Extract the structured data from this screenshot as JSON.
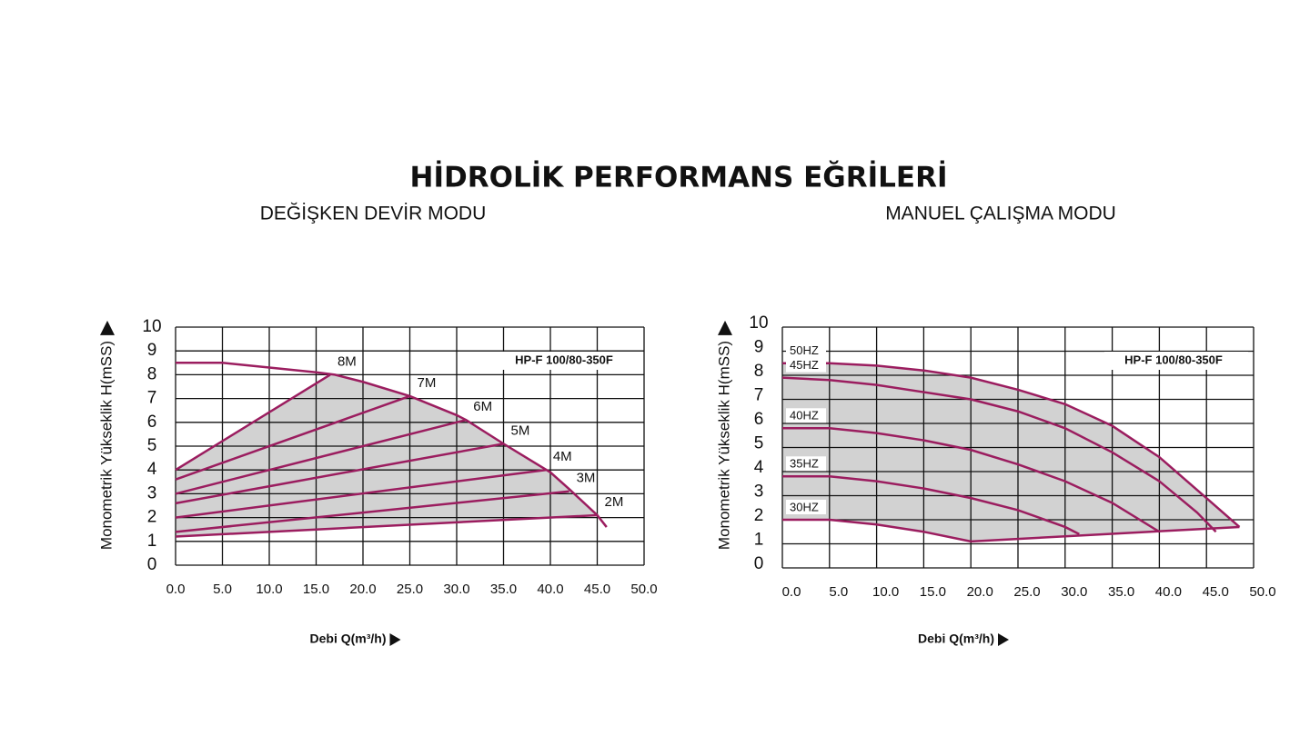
{
  "title": "HİDROLİK PERFORMANS EĞRİLERİ",
  "chart_data": [
    {
      "type": "line",
      "title": "DEĞİŞKEN DEVİR MODU",
      "annotation": "HP-F 100/80-350F",
      "y_label": "Monometrik Yükseklik H(mSS)",
      "x_label": "Debi Q(m³/h)",
      "color": "#9b1d5f",
      "fill": "#d2d2d2",
      "grid": true,
      "xlim": [
        0,
        50
      ],
      "xticks": [
        {
          "value": 0,
          "label": "0.0"
        },
        {
          "value": 5,
          "label": "5.0"
        },
        {
          "value": 10,
          "label": "10.0"
        },
        {
          "value": 15,
          "label": "15.0"
        },
        {
          "value": 20,
          "label": "20.0"
        },
        {
          "value": 25,
          "label": "25.0"
        },
        {
          "value": 30,
          "label": "30.0"
        },
        {
          "value": 35,
          "label": "35.0"
        },
        {
          "value": 40,
          "label": "40.0"
        },
        {
          "value": 45,
          "label": "45.0"
        },
        {
          "value": 50,
          "label": "50.0"
        }
      ],
      "ylim": [
        0,
        10
      ],
      "yticks": [
        0,
        1,
        2,
        3,
        4,
        5,
        6,
        7,
        8,
        9,
        10
      ],
      "series": [
        {
          "x": [
            0,
            5,
            10,
            15,
            17,
            20,
            25,
            30,
            31,
            35,
            40,
            42,
            45,
            46
          ],
          "values": [
            8.5,
            8.5,
            8.3,
            8.1,
            8.0,
            7.7,
            7.1,
            6.3,
            6.1,
            5.1,
            3.9,
            3.2,
            2.1,
            1.6
          ]
        },
        {
          "name": "8M",
          "x": [
            0,
            16.5
          ],
          "values": [
            4.0,
            8.0
          ]
        },
        {
          "name": "7M",
          "x": [
            0,
            25
          ],
          "values": [
            3.6,
            7.1
          ]
        },
        {
          "name": "6M",
          "x": [
            0,
            31
          ],
          "values": [
            3.0,
            6.1
          ]
        },
        {
          "name": "5M",
          "x": [
            0,
            35
          ],
          "values": [
            2.6,
            5.1
          ]
        },
        {
          "name": "4M",
          "x": [
            0,
            39.5
          ],
          "values": [
            2.0,
            4.0
          ]
        },
        {
          "name": "3M",
          "x": [
            0,
            42
          ],
          "values": [
            1.4,
            3.1
          ]
        },
        {
          "name": "2M",
          "x": [
            0,
            45
          ],
          "values": [
            1.2,
            2.1
          ]
        }
      ]
    },
    {
      "type": "line",
      "title": "MANUEL ÇALIŞMA MODU",
      "annotation": "HP-F 100/80-350F",
      "y_label": "Monometrik Yükseklik H(mSS)",
      "x_label": "Debi Q(m³/h)",
      "color": "#9b1d5f",
      "fill": "#d2d2d2",
      "grid": true,
      "xlim": [
        0,
        50
      ],
      "xticks": [
        {
          "value": 0,
          "label": "0.0"
        },
        {
          "value": 5,
          "label": "5.0"
        },
        {
          "value": 10,
          "label": "10.0"
        },
        {
          "value": 15,
          "label": "15.0"
        },
        {
          "value": 20,
          "label": "20.0"
        },
        {
          "value": 25,
          "label": "25.0"
        },
        {
          "value": 30,
          "label": "30.0"
        },
        {
          "value": 35,
          "label": "35.0"
        },
        {
          "value": 40,
          "label": "40.0"
        },
        {
          "value": 45,
          "label": "45.0"
        },
        {
          "value": 50,
          "label": "50.0"
        }
      ],
      "ylim": [
        0,
        10
      ],
      "yticks": [
        0,
        1,
        2,
        3,
        4,
        5,
        6,
        7,
        8,
        9,
        10
      ],
      "series": [
        {
          "name": "50HZ",
          "x": [
            0,
            5,
            10,
            15,
            20,
            25,
            30,
            35,
            40,
            45,
            48.5
          ],
          "values": [
            8.5,
            8.5,
            8.4,
            8.2,
            7.9,
            7.4,
            6.8,
            5.9,
            4.6,
            2.9,
            1.7
          ]
        },
        {
          "name": "45HZ",
          "x": [
            0,
            5,
            10,
            15,
            20,
            25,
            30,
            35,
            40,
            44,
            46
          ],
          "values": [
            7.9,
            7.8,
            7.6,
            7.3,
            7.0,
            6.5,
            5.8,
            4.8,
            3.6,
            2.3,
            1.5
          ]
        },
        {
          "name": "40HZ",
          "x": [
            0,
            5,
            10,
            15,
            20,
            25,
            30,
            35,
            40
          ],
          "values": [
            5.8,
            5.8,
            5.6,
            5.3,
            4.9,
            4.3,
            3.6,
            2.7,
            1.5
          ]
        },
        {
          "name": "35HZ",
          "x": [
            0,
            5,
            10,
            15,
            20,
            25,
            30,
            31.5
          ],
          "values": [
            3.8,
            3.8,
            3.6,
            3.3,
            2.9,
            2.4,
            1.7,
            1.4
          ]
        },
        {
          "name": "30HZ",
          "x": [
            0,
            5,
            10,
            15,
            20
          ],
          "values": [
            2.0,
            2.0,
            1.8,
            1.5,
            1.1
          ]
        },
        {
          "x": [
            20,
            48.5
          ],
          "values": [
            1.1,
            1.7
          ]
        }
      ]
    }
  ]
}
